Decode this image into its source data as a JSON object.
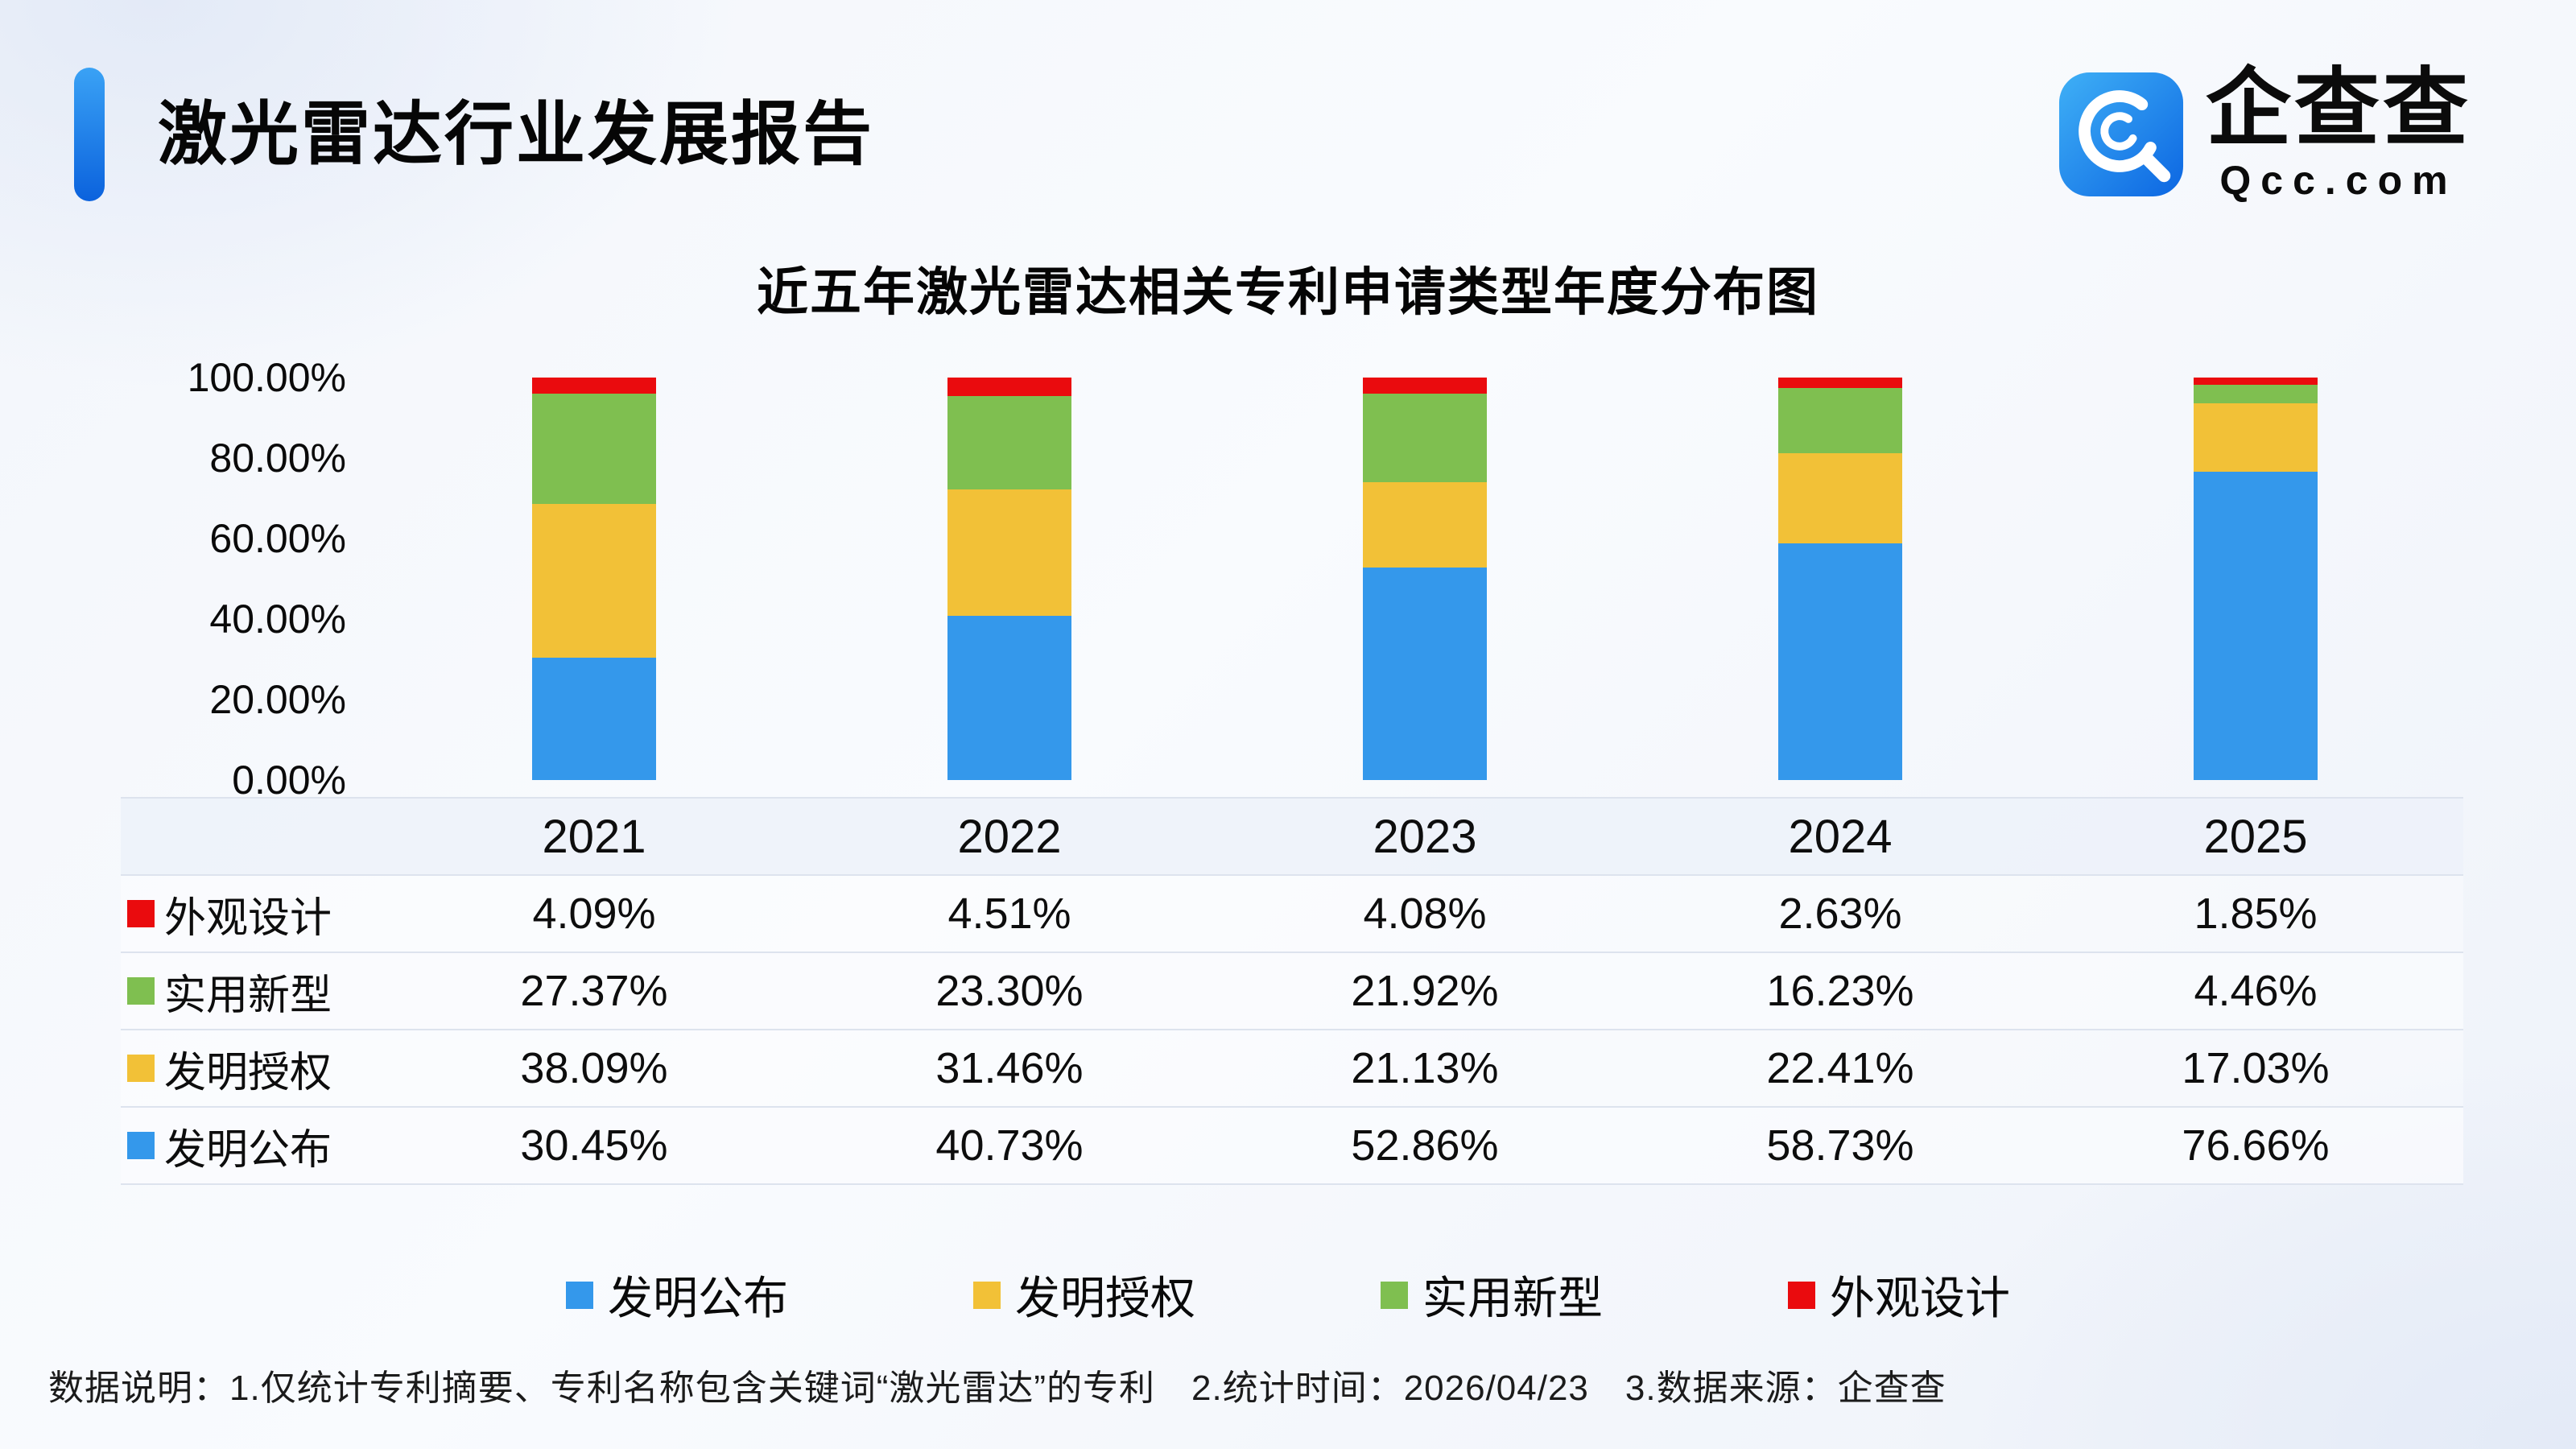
{
  "page": {
    "title": "激光雷达行业发展报告",
    "footer": "数据说明：1.仅统计专利摘要、专利名称包含关键词“激光雷达”的专利　2.统计时间：2026/04/23　3.数据来源：企查查"
  },
  "logo": {
    "name": "企查查",
    "domain": "Qcc.com",
    "brand_color": "#1e8cf0"
  },
  "chart_data": {
    "type": "bar",
    "stacked": true,
    "title": "近五年激光雷达相关专利申请类型年度分布图",
    "xlabel": "",
    "ylabel": "",
    "ylim": [
      0,
      100
    ],
    "y_ticks": [
      "100.00%",
      "80.00%",
      "60.00%",
      "40.00%",
      "20.00%",
      "0.00%"
    ],
    "categories": [
      "2021",
      "2022",
      "2023",
      "2024",
      "2025"
    ],
    "series": [
      {
        "name": "发明公布",
        "color": "#3498eb",
        "values": [
          30.45,
          40.73,
          52.86,
          58.73,
          76.66
        ]
      },
      {
        "name": "发明授权",
        "color": "#f2c137",
        "values": [
          38.09,
          31.46,
          21.13,
          22.41,
          17.03
        ]
      },
      {
        "name": "实用新型",
        "color": "#7fbf50",
        "values": [
          27.37,
          23.3,
          21.92,
          16.23,
          4.46
        ]
      },
      {
        "name": "外观设计",
        "color": "#ea0b0e",
        "values": [
          4.09,
          4.51,
          4.08,
          2.63,
          1.85
        ]
      }
    ],
    "table_rows": [
      {
        "label": "外观设计",
        "color": "#ea0b0e",
        "values": [
          "4.09%",
          "4.51%",
          "4.08%",
          "2.63%",
          "1.85%"
        ]
      },
      {
        "label": "实用新型",
        "color": "#7fbf50",
        "values": [
          "27.37%",
          "23.30%",
          "21.92%",
          "16.23%",
          "4.46%"
        ]
      },
      {
        "label": "发明授权",
        "color": "#f2c137",
        "values": [
          "38.09%",
          "31.46%",
          "21.13%",
          "22.41%",
          "17.03%"
        ]
      },
      {
        "label": "发明公布",
        "color": "#3498eb",
        "values": [
          "30.45%",
          "40.73%",
          "52.86%",
          "58.73%",
          "76.66%"
        ]
      }
    ],
    "legend": [
      "发明公布",
      "发明授权",
      "实用新型",
      "外观设计"
    ],
    "legend_position": "bottom",
    "grid": false
  }
}
